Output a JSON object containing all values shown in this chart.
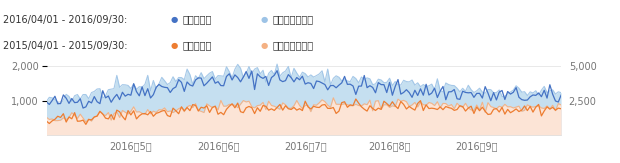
{
  "bg_color": "#ffffff",
  "legend": {
    "line1_label": "2016/04/01 - 2016/09/30:",
    "line2_label": "2015/04/01 - 2015/09/30:",
    "session_label": "セッション",
    "pv_label": "ページビュー数"
  },
  "colors": {
    "session_2016": "#4472c4",
    "pv_2016": "#9dc3e6",
    "session_2015": "#ed7d31",
    "pv_2015": "#f4b183",
    "fill_2016": "#c5dff0",
    "fill_2015": "#fce4d6",
    "grid": "#e0e0e0",
    "axis_text": "#767676"
  },
  "ylim_left": [
    0,
    2500
  ],
  "ylim_right": [
    0,
    6250
  ],
  "yticks_left": [
    1000,
    2000
  ],
  "yticks_right": [
    2500,
    5000
  ],
  "xlabel_ticks": [
    "2016年5月",
    "2016年6月",
    "2016年7月",
    "2016年8月",
    "2016年9月"
  ],
  "n_points": 184,
  "font_size": 7
}
